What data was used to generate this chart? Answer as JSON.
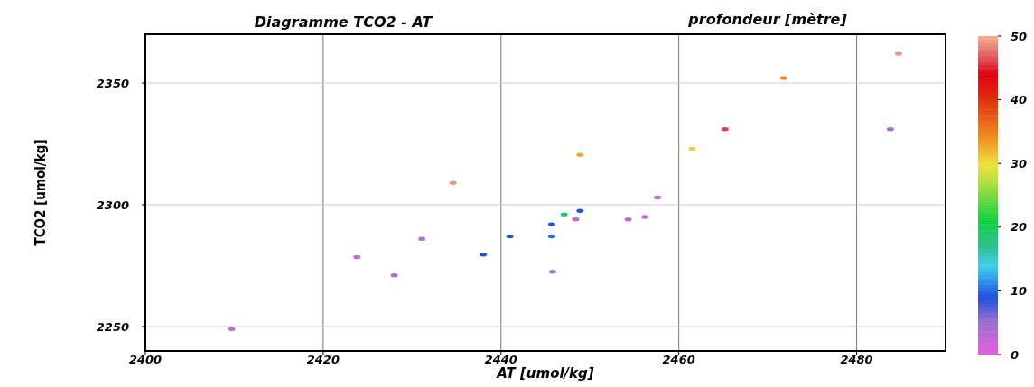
{
  "chart_data": {
    "type": "scatter",
    "title": "Diagramme TCO2 - AT",
    "xlabel": "AT [umol/kg]",
    "ylabel": "TCO2 [umol/kg]",
    "clabel": "profondeur [mètre]",
    "x": [
      2409.7,
      2423.8,
      2428.0,
      2431.1,
      2434.6,
      2438.0,
      2441.0,
      2445.7,
      2445.7,
      2445.8,
      2447.1,
      2448.4,
      2448.9,
      2448.9,
      2454.3,
      2456.2,
      2457.6,
      2461.5,
      2465.2,
      2471.8,
      2483.8,
      2484.7
    ],
    "values": [
      2249,
      2278.5,
      2271,
      2286,
      2309,
      2279.5,
      2287,
      2292,
      2287,
      2272.5,
      2296,
      2294,
      2297.5,
      2320.5,
      2294,
      2295,
      2303,
      2323,
      2331,
      2352,
      2331,
      2362
    ],
    "cvalues": [
      2,
      2,
      4,
      4,
      49,
      9,
      9,
      9,
      10,
      4,
      19,
      3,
      9,
      33,
      3,
      3,
      2,
      31,
      46,
      35,
      4,
      49
    ],
    "xlim": [
      2400,
      2490
    ],
    "ylim": [
      2240,
      2370
    ],
    "xticks": [
      2400,
      2420,
      2440,
      2460,
      2480
    ],
    "yticks": [
      2250,
      2300,
      2350
    ],
    "clim": [
      0,
      50
    ],
    "cticks": [
      0,
      10,
      20,
      30,
      40,
      50
    ],
    "grid": true,
    "marker": "circle"
  }
}
